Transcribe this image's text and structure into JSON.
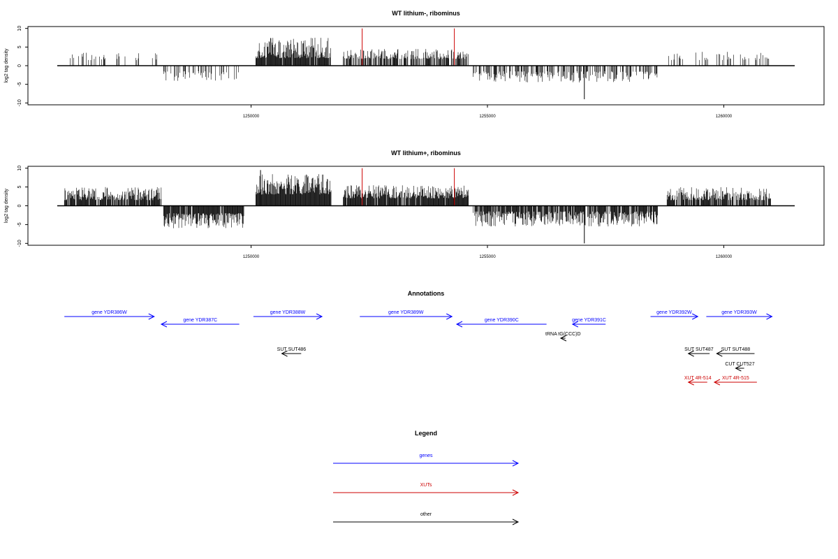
{
  "chart_data": [
    {
      "type": "bar",
      "title": "WT lithium-, ribominus",
      "ylabel": "log2 tag density",
      "xlabel": "",
      "xlim": [
        1245900,
        1261500
      ],
      "ylim": [
        -10.5,
        10.5
      ],
      "yticks": [
        -10,
        -5,
        0,
        5,
        10
      ],
      "ytick_labels": [
        "-10",
        "-5",
        "0",
        "5",
        "10"
      ],
      "xticks": [
        1250000,
        1255000,
        1260000
      ],
      "xtick_labels": [
        "1250000",
        "1255000",
        "1260000"
      ],
      "grid": false,
      "regions": [
        {
          "start": 1246050,
          "end": 1248100,
          "sign": 1,
          "min": 1.5,
          "max": 3.5,
          "density": 0.15
        },
        {
          "start": 1248150,
          "end": 1249800,
          "sign": -1,
          "min": 1.5,
          "max": 4.2,
          "density": 0.25
        },
        {
          "start": 1250100,
          "end": 1251700,
          "sign": 1,
          "min": 2.0,
          "max": 7.5,
          "density": 0.95
        },
        {
          "start": 1251950,
          "end": 1254600,
          "sign": 1,
          "min": 1.8,
          "max": 4.5,
          "density": 0.6
        },
        {
          "start": 1254700,
          "end": 1258600,
          "sign": -1,
          "min": 1.5,
          "max": 4.5,
          "density": 0.45
        },
        {
          "start": 1258800,
          "end": 1261000,
          "sign": 1,
          "min": 1.5,
          "max": 3.8,
          "density": 0.2
        }
      ],
      "spikes": [
        {
          "x": 1252350,
          "y": 10,
          "color": "#cc0000"
        },
        {
          "x": 1254300,
          "y": 10,
          "color": "#cc0000"
        },
        {
          "x": 1257050,
          "y": -9,
          "color": "#000000"
        }
      ]
    },
    {
      "type": "bar",
      "title": "WT lithium+, ribominus",
      "ylabel": "log2 tag density",
      "xlabel": "",
      "xlim": [
        1245900,
        1261500
      ],
      "ylim": [
        -10.5,
        10.5
      ],
      "yticks": [
        -10,
        -5,
        0,
        5,
        10
      ],
      "ytick_labels": [
        "-10",
        "-5",
        "0",
        "5",
        "10"
      ],
      "xticks": [
        1250000,
        1255000,
        1260000
      ],
      "xtick_labels": [
        "1250000",
        "1255000",
        "1260000"
      ],
      "grid": false,
      "regions": [
        {
          "start": 1246050,
          "end": 1248100,
          "sign": 1,
          "min": 1.5,
          "max": 5.0,
          "density": 0.9
        },
        {
          "start": 1248150,
          "end": 1249850,
          "sign": -1,
          "min": 2.0,
          "max": 6.0,
          "density": 0.95
        },
        {
          "start": 1250100,
          "end": 1251700,
          "sign": 1,
          "min": 3.0,
          "max": 8.5,
          "density": 1.0
        },
        {
          "start": 1251950,
          "end": 1254600,
          "sign": 1,
          "min": 2.0,
          "max": 5.5,
          "density": 0.95
        },
        {
          "start": 1254700,
          "end": 1258600,
          "sign": -1,
          "min": 1.5,
          "max": 5.5,
          "density": 0.85
        },
        {
          "start": 1258800,
          "end": 1261000,
          "sign": 1,
          "min": 1.5,
          "max": 5.0,
          "density": 0.85
        }
      ],
      "spikes": [
        {
          "x": 1252350,
          "y": 10,
          "color": "#cc0000"
        },
        {
          "x": 1254300,
          "y": 10,
          "color": "#cc0000"
        },
        {
          "x": 1257050,
          "y": -10,
          "color": "#000000"
        },
        {
          "x": 1250200,
          "y": 9.5,
          "color": "#000000"
        }
      ]
    }
  ],
  "annotations": {
    "title": "Annotations",
    "xlim": [
      1245900,
      1261500
    ],
    "features": [
      {
        "label": "gene YDR386W",
        "start": 1246050,
        "end": 1247950,
        "row": 0,
        "strand": "+",
        "color": "#0000ff"
      },
      {
        "label": "gene YDR387C",
        "start": 1248100,
        "end": 1249750,
        "row": 1,
        "strand": "-",
        "color": "#0000ff"
      },
      {
        "label": "gene YDR388W",
        "start": 1250050,
        "end": 1251500,
        "row": 0,
        "strand": "+",
        "color": "#0000ff"
      },
      {
        "label": "gene YDR389W",
        "start": 1252300,
        "end": 1254250,
        "row": 0,
        "strand": "+",
        "color": "#0000ff"
      },
      {
        "label": "gene YDR390C",
        "start": 1254350,
        "end": 1256250,
        "row": 1,
        "strand": "-",
        "color": "#0000ff"
      },
      {
        "label": "gene YDR391C",
        "start": 1256800,
        "end": 1257500,
        "row": 1,
        "strand": "-",
        "color": "#0000ff"
      },
      {
        "label": "gene YDR392W",
        "start": 1258450,
        "end": 1259450,
        "row": 0,
        "strand": "+",
        "color": "#0000ff"
      },
      {
        "label": "gene YDR393W",
        "start": 1259630,
        "end": 1261020,
        "row": 0,
        "strand": "+",
        "color": "#0000ff"
      },
      {
        "label": "tRNA tG(CCC)D",
        "start": 1256550,
        "end": 1256650,
        "row": 2,
        "strand": "-",
        "color": "#000000"
      },
      {
        "label": "SUT SUT486",
        "start": 1250650,
        "end": 1251060,
        "row": 3,
        "strand": "-",
        "color": "#000000"
      },
      {
        "label": "SUT SUT487",
        "start": 1259250,
        "end": 1259700,
        "row": 3,
        "strand": "-",
        "color": "#000000"
      },
      {
        "label": "SUT SUT488",
        "start": 1259850,
        "end": 1260650,
        "row": 3,
        "strand": "-",
        "color": "#000000"
      },
      {
        "label": "CUT CUT527",
        "start": 1260250,
        "end": 1260430,
        "row": 4,
        "strand": "-",
        "color": "#000000"
      },
      {
        "label": "XUT 4R-514",
        "start": 1259250,
        "end": 1259650,
        "row": 5,
        "strand": "-",
        "color": "#cc0000"
      },
      {
        "label": "XUT 4R-515",
        "start": 1259800,
        "end": 1260700,
        "row": 5,
        "strand": "-",
        "color": "#cc0000"
      }
    ]
  },
  "legend": {
    "title": "Legend",
    "items": [
      {
        "label": "genes",
        "color": "#0000ff"
      },
      {
        "label": "XUTs",
        "color": "#cc0000"
      },
      {
        "label": "other",
        "color": "#000000"
      }
    ]
  }
}
